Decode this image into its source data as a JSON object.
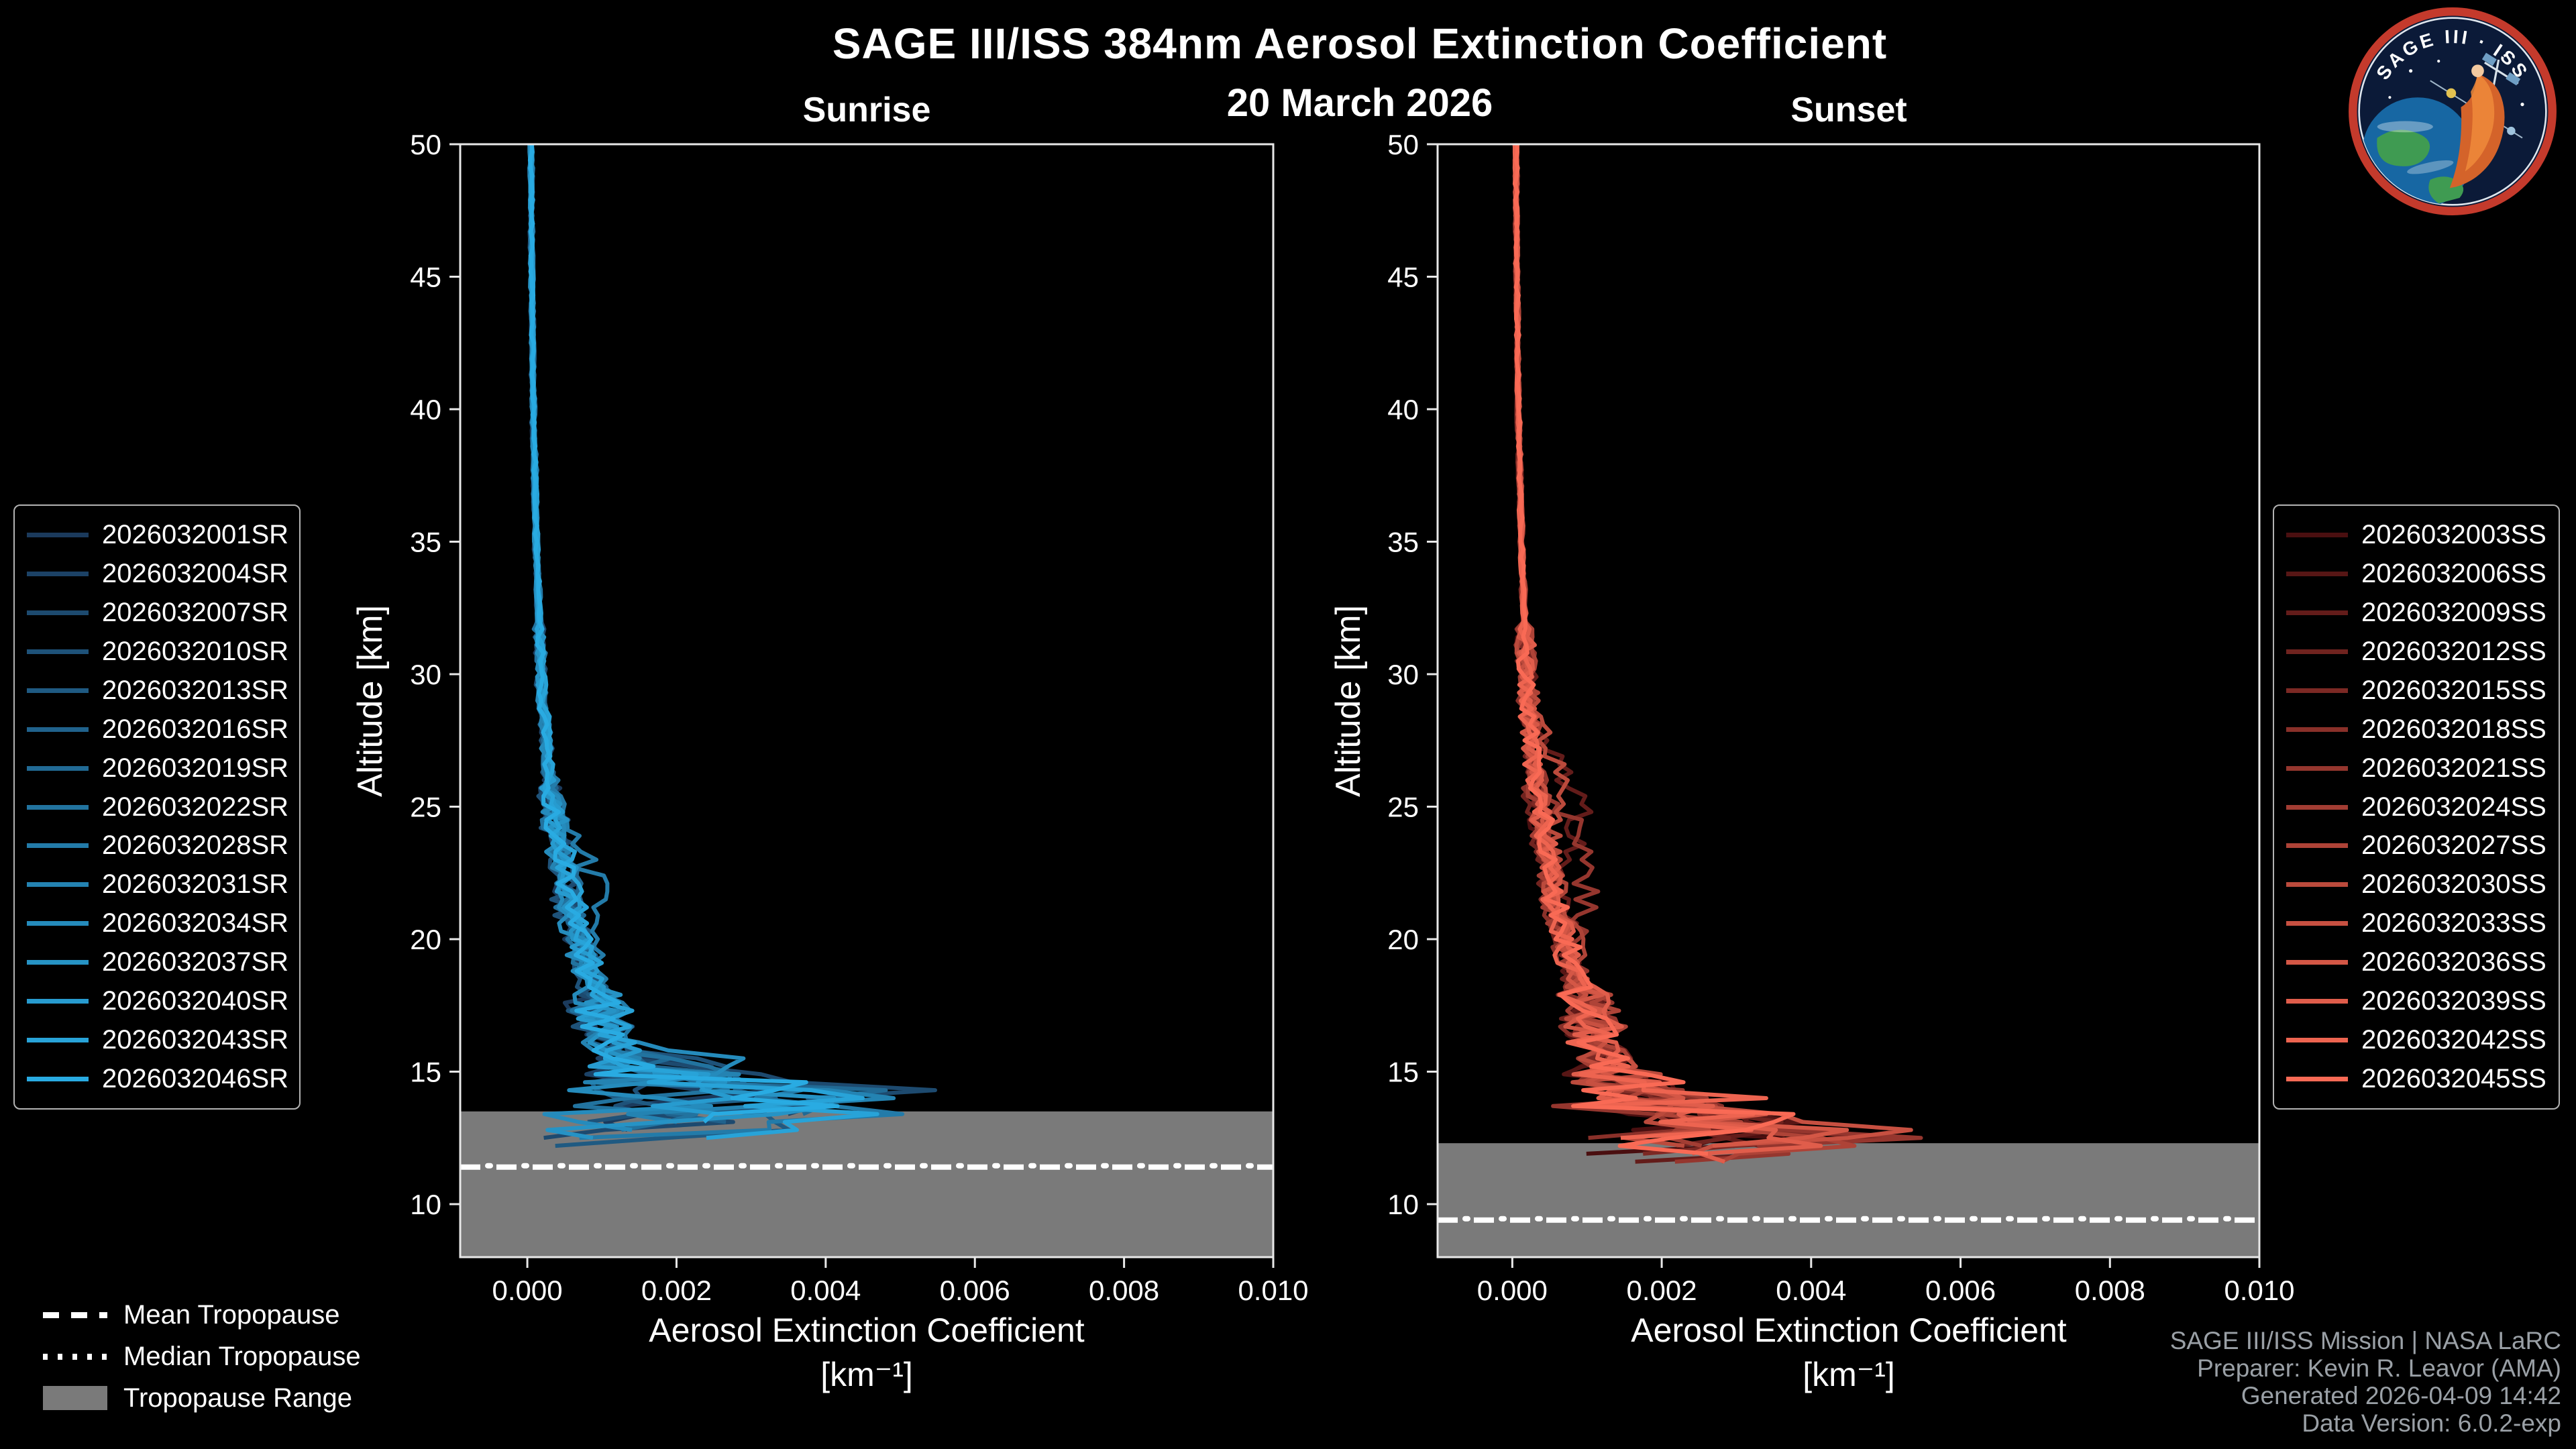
{
  "title": "SAGE III/ISS 384nm Aerosol Extinction Coefficient",
  "date": "20 March 2026",
  "logo": {
    "title": "SAGE III · ISS"
  },
  "colors": {
    "background": "#000000",
    "axis": "#e8e8e8",
    "text": "#ffffff",
    "credits_text": "#9aa0a6",
    "tropopause_gray": "#7a7a7a",
    "sunrise_accent": "#29ABE2",
    "sunset_accent": "#F96A55"
  },
  "tropopause_legend": {
    "mean": "Mean Tropopause",
    "median": "Median Tropopause",
    "range": "Tropopause Range"
  },
  "credits": {
    "lines": [
      "SAGE III/ISS Mission | NASA LaRC",
      "Preparer: Kevin R. Leavor (AMA)",
      "Generated 2026-04-09 14:42",
      "Data Version: 6.0.2-exp"
    ]
  },
  "chart_data": {
    "type": "line",
    "title": "SAGE III/ISS 384nm Aerosol Extinction Coefficient",
    "date": "20 March 2026",
    "grid": false,
    "panels": [
      {
        "id": "sunrise",
        "title": "Sunrise",
        "xlabel": "Aerosol Extinction Coefficient",
        "xunit": "[km⁻¹]",
        "ylabel": "Altitude [km]",
        "xlim": [
          -0.0009,
          0.01
        ],
        "ylim": [
          8,
          50
        ],
        "xticks": [
          0,
          0.002,
          0.004,
          0.006,
          0.008,
          0.01
        ],
        "xtick_labels": [
          "0.000",
          "0.002",
          "0.004",
          "0.006",
          "0.008",
          "0.010"
        ],
        "yticks": [
          10,
          15,
          20,
          25,
          30,
          35,
          40,
          45,
          50
        ],
        "tropopause": {
          "range_top": 13.5,
          "range_bottom": 8,
          "mean": 11.4,
          "median": 11.45
        },
        "base_profile": {
          "altitude_km": [
            50,
            45,
            40,
            35,
            30,
            27,
            25,
            23,
            21,
            20,
            19,
            18,
            17,
            16,
            15,
            14,
            13.5,
            13,
            12.5,
            12,
            11
          ],
          "extinction_per_km": [
            5e-05,
            6e-05,
            8e-05,
            0.00012,
            0.00018,
            0.00026,
            0.00035,
            0.00046,
            0.0006,
            0.0007,
            0.0008,
            0.0009,
            0.001,
            0.0011,
            0.0013,
            0.0016,
            0.0017,
            0.0014,
            0.0011,
            0.0008,
            0.0006
          ]
        },
        "series": [
          {
            "name": "2026032001SR",
            "color": "#1B3A5C",
            "seed": 1,
            "scale": 0.9,
            "bottom_km": 12.8,
            "spike_alt_km": 14.8,
            "spike_mag": 0.002
          },
          {
            "name": "2026032004SR",
            "color": "#1C4266",
            "seed": 2,
            "scale": 1.0,
            "bottom_km": 13.2,
            "spike_alt_km": 13.6,
            "spike_mag": 0.0028
          },
          {
            "name": "2026032007SR",
            "color": "#1D4A6F",
            "seed": 3,
            "scale": 1.1,
            "bottom_km": 12.5,
            "spike_alt_km": 14.2,
            "spike_mag": 0.0033
          },
          {
            "name": "2026032010SR",
            "color": "#1E5279",
            "seed": 4,
            "scale": 0.85,
            "bottom_km": 13.0,
            "spike_alt_km": 15.2,
            "spike_mag": 0.0018
          },
          {
            "name": "2026032013SR",
            "color": "#1F5A82",
            "seed": 5,
            "scale": 1.05,
            "bottom_km": 12.2,
            "spike_alt_km": 13.2,
            "spike_mag": 0.003
          },
          {
            "name": "2026032016SR",
            "color": "#20628C",
            "seed": 6,
            "scale": 0.95,
            "bottom_km": 12.9,
            "spike_alt_km": 14.5,
            "spike_mag": 0.0024
          },
          {
            "name": "2026032019SR",
            "color": "#216A95",
            "seed": 7,
            "scale": 1.1,
            "bottom_km": 13.4,
            "spike_alt_km": 13.8,
            "spike_mag": 0.0036
          },
          {
            "name": "2026032022SR",
            "color": "#22739F",
            "seed": 8,
            "scale": 0.9,
            "bottom_km": 12.6,
            "spike_alt_km": 14.9,
            "spike_mag": 0.0022
          },
          {
            "name": "2026032028SR",
            "color": "#237BA9",
            "seed": 9,
            "scale": 1.15,
            "bottom_km": 12.3,
            "spike_alt_km": 13.4,
            "spike_mag": 0.004,
            "bulge_alt_km": 22,
            "bulge_mag": 0.0004
          },
          {
            "name": "2026032031SR",
            "color": "#2483B2",
            "seed": 10,
            "scale": 1.0,
            "bottom_km": 13.1,
            "spike_alt_km": 14.0,
            "spike_mag": 0.0026
          },
          {
            "name": "2026032034SR",
            "color": "#258BBC",
            "seed": 11,
            "scale": 0.9,
            "bottom_km": 12.7,
            "spike_alt_km": 15.4,
            "spike_mag": 0.0019
          },
          {
            "name": "2026032037SR",
            "color": "#2693C5",
            "seed": 12,
            "scale": 1.05,
            "bottom_km": 12.4,
            "spike_alt_km": 13.9,
            "spike_mag": 0.0034
          },
          {
            "name": "2026032040SR",
            "color": "#279BCF",
            "seed": 13,
            "scale": 1.0,
            "bottom_km": 13.3,
            "spike_alt_km": 14.4,
            "spike_mag": 0.0029
          },
          {
            "name": "2026032043SR",
            "color": "#28A3D8",
            "seed": 14,
            "scale": 1.1,
            "bottom_km": 12.5,
            "spike_alt_km": 13.5,
            "spike_mag": 0.0038
          },
          {
            "name": "2026032046SR",
            "color": "#29ABE2",
            "seed": 15,
            "scale": 1.0,
            "bottom_km": 12.9,
            "spike_alt_km": 14.1,
            "spike_mag": 0.0031
          }
        ]
      },
      {
        "id": "sunset",
        "title": "Sunset",
        "xlabel": "Aerosol Extinction Coefficient",
        "xunit": "[km⁻¹]",
        "ylabel": "Altitude [km]",
        "xlim": [
          -0.001,
          0.01
        ],
        "ylim": [
          8,
          50
        ],
        "xticks": [
          0,
          0.002,
          0.004,
          0.006,
          0.008,
          0.01
        ],
        "xtick_labels": [
          "0.000",
          "0.002",
          "0.004",
          "0.006",
          "0.008",
          "0.010"
        ],
        "yticks": [
          10,
          15,
          20,
          25,
          30,
          35,
          40,
          45,
          50
        ],
        "tropopause": {
          "range_top": 12.3,
          "range_bottom": 8,
          "mean": 9.4,
          "median": 9.45
        },
        "base_profile": {
          "altitude_km": [
            50,
            45,
            40,
            35,
            30,
            27,
            25,
            23,
            21,
            20,
            19,
            18,
            17,
            16,
            15,
            14,
            13.5,
            13,
            12.5,
            12,
            11
          ],
          "extinction_per_km": [
            5e-05,
            6e-05,
            8e-05,
            0.00012,
            0.00018,
            0.00026,
            0.00035,
            0.00046,
            0.0006,
            0.0007,
            0.0008,
            0.0009,
            0.001,
            0.0011,
            0.0013,
            0.0016,
            0.0017,
            0.0014,
            0.0011,
            0.0008,
            0.0006
          ]
        },
        "series": [
          {
            "name": "2026032003SS",
            "color": "#4A0F10",
            "seed": 21,
            "scale": 0.95,
            "bottom_km": 11.8,
            "spike_alt_km": 12.4,
            "spike_mag": 0.0025
          },
          {
            "name": "2026032006SS",
            "color": "#571615",
            "seed": 22,
            "scale": 1.0,
            "bottom_km": 12.2,
            "spike_alt_km": 13.0,
            "spike_mag": 0.003
          },
          {
            "name": "2026032009SS",
            "color": "#631C1A",
            "seed": 23,
            "scale": 1.1,
            "bottom_km": 11.5,
            "spike_alt_km": 12.2,
            "spike_mag": 0.0042,
            "bulge_alt_km": 25,
            "bulge_mag": 0.0007
          },
          {
            "name": "2026032012SS",
            "color": "#70231F",
            "seed": 24,
            "scale": 0.9,
            "bottom_km": 12.0,
            "spike_alt_km": 12.8,
            "spike_mag": 0.0028
          },
          {
            "name": "2026032015SS",
            "color": "#7C2924",
            "seed": 25,
            "scale": 1.05,
            "bottom_km": 11.9,
            "spike_alt_km": 12.5,
            "spike_mag": 0.0035
          },
          {
            "name": "2026032018SS",
            "color": "#893029",
            "seed": 26,
            "scale": 0.9,
            "bottom_km": 12.3,
            "spike_alt_km": 13.2,
            "spike_mag": 0.0022
          },
          {
            "name": "2026032021SS",
            "color": "#95362E",
            "seed": 27,
            "scale": 1.1,
            "bottom_km": 11.6,
            "spike_alt_km": 12.3,
            "spike_mag": 0.0046,
            "bulge_alt_km": 23,
            "bulge_mag": 0.0008
          },
          {
            "name": "2026032024SS",
            "color": "#A23D33",
            "seed": 28,
            "scale": 0.95,
            "bottom_km": 12.1,
            "spike_alt_km": 12.9,
            "spike_mag": 0.0026
          },
          {
            "name": "2026032027SS",
            "color": "#AE4337",
            "seed": 29,
            "scale": 1.15,
            "bottom_km": 11.4,
            "spike_alt_km": 12.1,
            "spike_mag": 0.0048
          },
          {
            "name": "2026032030SS",
            "color": "#BB4A3C",
            "seed": 30,
            "scale": 1.0,
            "bottom_km": 12.2,
            "spike_alt_km": 13.1,
            "spike_mag": 0.0024,
            "bulge_alt_km": 26,
            "bulge_mag": 0.0005
          },
          {
            "name": "2026032033SS",
            "color": "#C75041",
            "seed": 31,
            "scale": 1.05,
            "bottom_km": 11.7,
            "spike_alt_km": 12.6,
            "spike_mag": 0.0038
          },
          {
            "name": "2026032036SS",
            "color": "#D45746",
            "seed": 32,
            "scale": 1.0,
            "bottom_km": 12.0,
            "spike_alt_km": 12.7,
            "spike_mag": 0.0032
          },
          {
            "name": "2026032039SS",
            "color": "#E05D4B",
            "seed": 33,
            "scale": 1.1,
            "bottom_km": 11.5,
            "spike_alt_km": 12.2,
            "spike_mag": 0.0044
          },
          {
            "name": "2026032042SS",
            "color": "#ED6450",
            "seed": 34,
            "scale": 0.95,
            "bottom_km": 12.3,
            "spike_alt_km": 13.3,
            "spike_mag": 0.0027
          },
          {
            "name": "2026032045SS",
            "color": "#F96A55",
            "seed": 35,
            "scale": 1.05,
            "bottom_km": 11.8,
            "spike_alt_km": 12.5,
            "spike_mag": 0.0036
          }
        ]
      }
    ]
  }
}
